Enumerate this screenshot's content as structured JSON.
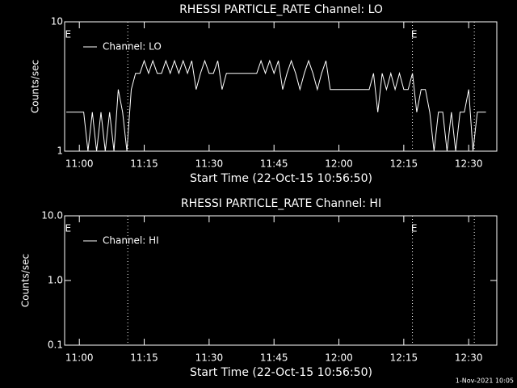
{
  "chart_data": [
    {
      "type": "line",
      "title": "RHESSI PARTICLE_RATE Channel: LO",
      "xlabel": "Start Time (22-Oct-15 10:56:50)",
      "ylabel": "Counts/sec",
      "log_y": true,
      "xlim": [
        -3.4,
        96.5
      ],
      "ylim": [
        1,
        10
      ],
      "xticks": [
        {
          "value": 0,
          "label": "11:00"
        },
        {
          "value": 15,
          "label": "11:15"
        },
        {
          "value": 30,
          "label": "11:30"
        },
        {
          "value": 45,
          "label": "11:45"
        },
        {
          "value": 60,
          "label": "12:00"
        },
        {
          "value": 75,
          "label": "12:15"
        },
        {
          "value": 90,
          "label": "12:30"
        }
      ],
      "yticks": [
        1,
        10
      ],
      "vlines": [
        11.2,
        77,
        91.3
      ],
      "flags": [
        {
          "x": -2.6,
          "label": "E"
        },
        {
          "x": 77.4,
          "label": "E"
        }
      ],
      "x": [
        -3,
        -2,
        -1,
        0,
        1,
        2,
        3,
        4,
        5,
        6,
        7,
        8,
        9,
        10,
        11,
        12,
        13,
        14,
        15,
        16,
        17,
        18,
        19,
        20,
        21,
        22,
        23,
        24,
        25,
        26,
        27,
        28,
        29,
        30,
        31,
        32,
        33,
        34,
        35,
        36,
        37,
        38,
        39,
        40,
        41,
        42,
        43,
        44,
        45,
        46,
        47,
        48,
        49,
        50,
        51,
        52,
        53,
        54,
        55,
        56,
        57,
        58,
        59,
        60,
        61,
        62,
        63,
        64,
        65,
        66,
        67,
        68,
        69,
        70,
        71,
        72,
        73,
        74,
        75,
        76,
        77,
        78,
        79,
        80,
        81,
        82,
        83,
        84,
        85,
        86,
        87,
        88,
        89,
        90,
        91,
        92,
        93,
        94
      ],
      "series": [
        {
          "name": "Channel: LO",
          "color": "#ffffff",
          "values": [
            2,
            2,
            2,
            2,
            2,
            1,
            2,
            1,
            2,
            1,
            2,
            1,
            3,
            2,
            1,
            3,
            4,
            4,
            5,
            4,
            5,
            4,
            4,
            5,
            4,
            5,
            4,
            5,
            4,
            5,
            3,
            4,
            5,
            4,
            4,
            5,
            3,
            4,
            4,
            4,
            4,
            4,
            4,
            4,
            4,
            5,
            4,
            5,
            4,
            5,
            3,
            4,
            5,
            4,
            3,
            4,
            5,
            4,
            3,
            4,
            5,
            3,
            3,
            3,
            3,
            3,
            3,
            3,
            3,
            3,
            3,
            4,
            2,
            4,
            3,
            4,
            3,
            4,
            3,
            3,
            4,
            2,
            3,
            3,
            2,
            1,
            2,
            2,
            1,
            2,
            1,
            2,
            2,
            3,
            1,
            2,
            2,
            2
          ]
        }
      ]
    },
    {
      "type": "line",
      "title": "RHESSI PARTICLE_RATE Channel: HI",
      "xlabel": "Start Time (22-Oct-15 10:56:50)",
      "ylabel": "Counts/sec",
      "log_y": true,
      "xlim": [
        -3.4,
        96.5
      ],
      "ylim": [
        0.1,
        10
      ],
      "xticks": [
        {
          "value": 0,
          "label": "11:00"
        },
        {
          "value": 15,
          "label": "11:15"
        },
        {
          "value": 30,
          "label": "11:30"
        },
        {
          "value": 45,
          "label": "11:45"
        },
        {
          "value": 60,
          "label": "12:00"
        },
        {
          "value": 75,
          "label": "12:15"
        },
        {
          "value": 90,
          "label": "12:30"
        }
      ],
      "yticks": [
        0.1,
        {
          "value": 1,
          "label": "1.0"
        },
        {
          "value": 10,
          "label": "10.0"
        }
      ],
      "vlines": [
        11.2,
        77,
        91.3
      ],
      "flags": [
        {
          "x": -2.6,
          "label": "E"
        },
        {
          "x": 77.4,
          "label": "E"
        }
      ],
      "x": [],
      "series": [
        {
          "name": "Channel: HI",
          "color": "#ffffff",
          "values": []
        }
      ]
    }
  ],
  "footer": "1-Nov-2021 10:05"
}
